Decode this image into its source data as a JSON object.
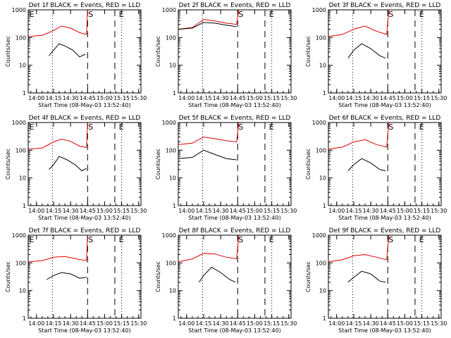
{
  "figure": {
    "ylabel": "Counts/sec",
    "xlabel": "Start Time (08-May-03 13:52:40)"
  },
  "colors": {
    "events": "#000000",
    "lld": "#e00000"
  },
  "chart_data": [
    {
      "type": "line",
      "title": "Det 1f BLACK = Events, RED = LLD",
      "xlabel": "Start Time (08-May-03 13:52:40)",
      "ylabel": "Counts/sec",
      "yscale": "log",
      "ylim": [
        1,
        1000
      ],
      "ytick_labels": [
        "1",
        "10",
        "100",
        "1000"
      ],
      "xtick_labels": [
        "14:00",
        "14:15",
        "14:30",
        "14:45",
        "15:00",
        "15:15",
        "15:30"
      ],
      "markers": [
        {
          "label": "E",
          "at": "13:53"
        },
        {
          "label": "S",
          "at": "14:45"
        },
        {
          "label": "E",
          "at": "15:12"
        }
      ],
      "dotted_lines": [
        "14:14",
        "15:15"
      ],
      "dashed_lines": [
        "14:45",
        "15:09"
      ],
      "series": [
        {
          "name": "LLD",
          "color": "#e00000",
          "points": [
            [
              "13:53",
              110
            ],
            [
              "14:05",
              120
            ],
            [
              "14:15",
              180
            ],
            [
              "14:22",
              260
            ],
            [
              "14:30",
              220
            ],
            [
              "14:38",
              150
            ],
            [
              "14:44",
              130
            ],
            [
              "14:45",
              1000
            ]
          ]
        },
        {
          "name": "Events",
          "color": "#000000",
          "points": [
            [
              "14:11",
              22
            ],
            [
              "14:15",
              35
            ],
            [
              "14:20",
              60
            ],
            [
              "14:25",
              50
            ],
            [
              "14:32",
              35
            ],
            [
              "14:38",
              20
            ],
            [
              "14:43",
              25
            ]
          ]
        }
      ]
    },
    {
      "type": "line",
      "title": "Det 2f BLACK = Events, RED = LLD",
      "xlabel": "Start Time (08-May-03 13:52:40)",
      "ylabel": "Counts/sec",
      "yscale": "log",
      "ylim": [
        1,
        1000
      ],
      "ytick_labels": [
        "1",
        "10",
        "100",
        "1000"
      ],
      "xtick_labels": [
        "14:00",
        "14:15",
        "14:30",
        "14:45",
        "15:00",
        "15:15",
        "15:30"
      ],
      "markers": [
        {
          "label": "S",
          "at": "14:45"
        },
        {
          "label": "E",
          "at": "15:12"
        }
      ],
      "dotted_lines": [
        "14:14",
        "15:15"
      ],
      "dashed_lines": [
        "14:45",
        "15:09"
      ],
      "series": [
        {
          "name": "LLD",
          "color": "#e00000",
          "points": [
            [
              "13:53",
              200
            ],
            [
              "14:05",
              230
            ],
            [
              "14:15",
              450
            ],
            [
              "14:25",
              400
            ],
            [
              "14:35",
              330
            ],
            [
              "14:44",
              300
            ],
            [
              "14:46",
              1000
            ]
          ]
        },
        {
          "name": "Events",
          "color": "#000000",
          "points": [
            [
              "13:53",
              200
            ],
            [
              "14:05",
              220
            ],
            [
              "14:15",
              350
            ],
            [
              "14:25",
              330
            ],
            [
              "14:35",
              280
            ],
            [
              "14:44",
              250
            ]
          ]
        }
      ]
    },
    {
      "type": "line",
      "title": "Det 3f BLACK = Events, RED = LLD",
      "xlabel": "Start Time (08-May-03 13:52:40)",
      "ylabel": "Counts/sec",
      "yscale": "log",
      "ylim": [
        1,
        1000
      ],
      "ytick_labels": [
        "1",
        "10",
        "100",
        "1000"
      ],
      "xtick_labels": [
        "14:00",
        "14:15",
        "14:30",
        "14:45",
        "15:00",
        "15:15",
        "15:30"
      ],
      "markers": [
        {
          "label": "S",
          "at": "14:45"
        },
        {
          "label": "E",
          "at": "15:12"
        }
      ],
      "dotted_lines": [
        "14:14",
        "15:15"
      ],
      "dashed_lines": [
        "14:45",
        "15:09"
      ],
      "series": [
        {
          "name": "LLD",
          "color": "#e00000",
          "points": [
            [
              "13:53",
              110
            ],
            [
              "14:05",
              130
            ],
            [
              "14:15",
              200
            ],
            [
              "14:25",
              260
            ],
            [
              "14:35",
              170
            ],
            [
              "14:44",
              130
            ],
            [
              "14:46",
              1000
            ]
          ]
        },
        {
          "name": "Events",
          "color": "#000000",
          "points": [
            [
              "14:10",
              18
            ],
            [
              "14:15",
              35
            ],
            [
              "14:22",
              60
            ],
            [
              "14:30",
              40
            ],
            [
              "14:38",
              22
            ],
            [
              "14:43",
              18
            ]
          ]
        }
      ]
    },
    {
      "type": "line",
      "title": "Det 4f BLACK = Events, RED = LLD",
      "xlabel": "Start Time (08-May-03 13:52:40)",
      "ylabel": "Counts/sec",
      "yscale": "log",
      "ylim": [
        1,
        1000
      ],
      "ytick_labels": [
        "1",
        "10",
        "100",
        "1000"
      ],
      "xtick_labels": [
        "14:00",
        "14:15",
        "14:30",
        "14:45",
        "15:00",
        "15:15",
        "15:30"
      ],
      "markers": [
        {
          "label": "E",
          "at": "13:53"
        },
        {
          "label": "S",
          "at": "14:45"
        },
        {
          "label": "E",
          "at": "15:12"
        }
      ],
      "dotted_lines": [
        "14:14",
        "15:15"
      ],
      "dashed_lines": [
        "14:45",
        "15:09"
      ],
      "series": [
        {
          "name": "LLD",
          "color": "#e00000",
          "points": [
            [
              "13:53",
              110
            ],
            [
              "14:05",
              120
            ],
            [
              "14:15",
              200
            ],
            [
              "14:22",
              250
            ],
            [
              "14:30",
              210
            ],
            [
              "14:38",
              140
            ],
            [
              "14:44",
              125
            ],
            [
              "14:45",
              1000
            ]
          ]
        },
        {
          "name": "Events",
          "color": "#000000",
          "points": [
            [
              "14:11",
              20
            ],
            [
              "14:15",
              30
            ],
            [
              "14:20",
              60
            ],
            [
              "14:27",
              45
            ],
            [
              "14:34",
              30
            ],
            [
              "14:40",
              18
            ],
            [
              "14:44",
              22
            ]
          ]
        }
      ]
    },
    {
      "type": "line",
      "title": "Det 5f BLACK = Events, RED = LLD",
      "xlabel": "Start Time (08-May-03 13:52:40)",
      "ylabel": "Counts/sec",
      "yscale": "log",
      "ylim": [
        1,
        1000
      ],
      "ytick_labels": [
        "1",
        "10",
        "100",
        "1000"
      ],
      "xtick_labels": [
        "14:00",
        "14:15",
        "14:30",
        "14:45",
        "15:00",
        "15:15",
        "15:30"
      ],
      "markers": [
        {
          "label": "S",
          "at": "14:45"
        },
        {
          "label": "E",
          "at": "15:12"
        }
      ],
      "dotted_lines": [
        "14:14",
        "15:15"
      ],
      "dashed_lines": [
        "14:45",
        "15:09"
      ],
      "series": [
        {
          "name": "LLD",
          "color": "#e00000",
          "points": [
            [
              "13:53",
              160
            ],
            [
              "14:05",
              180
            ],
            [
              "14:15",
              300
            ],
            [
              "14:25",
              260
            ],
            [
              "14:35",
              220
            ],
            [
              "14:44",
              200
            ],
            [
              "14:46",
              1000
            ]
          ]
        },
        {
          "name": "Events",
          "color": "#000000",
          "points": [
            [
              "13:53",
              50
            ],
            [
              "14:05",
              55
            ],
            [
              "14:15",
              100
            ],
            [
              "14:25",
              70
            ],
            [
              "14:35",
              50
            ],
            [
              "14:44",
              45
            ]
          ]
        }
      ]
    },
    {
      "type": "line",
      "title": "Det 6f BLACK = Events, RED = LLD",
      "xlabel": "Start Time (08-May-03 13:52:40)",
      "ylabel": "Counts/sec",
      "yscale": "log",
      "ylim": [
        1,
        1000
      ],
      "ytick_labels": [
        "1",
        "10",
        "100",
        "1000"
      ],
      "xtick_labels": [
        "14:00",
        "14:15",
        "14:30",
        "14:45",
        "15:00",
        "15:15",
        "15:30"
      ],
      "markers": [
        {
          "label": "S",
          "at": "14:45"
        },
        {
          "label": "E",
          "at": "15:12"
        }
      ],
      "dotted_lines": [
        "14:14",
        "15:15"
      ],
      "dashed_lines": [
        "14:45",
        "15:09"
      ],
      "series": [
        {
          "name": "LLD",
          "color": "#e00000",
          "points": [
            [
              "13:53",
              110
            ],
            [
              "14:05",
              130
            ],
            [
              "14:15",
              200
            ],
            [
              "14:25",
              240
            ],
            [
              "14:35",
              160
            ],
            [
              "14:44",
              130
            ],
            [
              "14:46",
              1000
            ]
          ]
        },
        {
          "name": "Events",
          "color": "#000000",
          "points": [
            [
              "14:10",
              18
            ],
            [
              "14:15",
              30
            ],
            [
              "14:22",
              50
            ],
            [
              "14:30",
              35
            ],
            [
              "14:38",
              20
            ],
            [
              "14:43",
              18
            ]
          ]
        }
      ]
    },
    {
      "type": "line",
      "title": "Det 7f BLACK = Events, RED = LLD",
      "xlabel": "Start Time (08-May-03 13:52:40)",
      "ylabel": "Counts/sec",
      "yscale": "log",
      "ylim": [
        1,
        1000
      ],
      "ytick_labels": [
        "1",
        "10",
        "100",
        "1000"
      ],
      "xtick_labels": [
        "14:00",
        "14:15",
        "14:30",
        "14:45",
        "15:00",
        "15:15",
        "15:30"
      ],
      "markers": [
        {
          "label": "E",
          "at": "13:53"
        },
        {
          "label": "S",
          "at": "14:45"
        },
        {
          "label": "E",
          "at": "15:12"
        }
      ],
      "dotted_lines": [
        "14:14",
        "15:15"
      ],
      "dashed_lines": [
        "14:45",
        "15:09"
      ],
      "series": [
        {
          "name": "LLD",
          "color": "#e00000",
          "points": [
            [
              "13:53",
              110
            ],
            [
              "14:05",
              120
            ],
            [
              "14:15",
              160
            ],
            [
              "14:25",
              170
            ],
            [
              "14:35",
              140
            ],
            [
              "14:44",
              120
            ],
            [
              "14:45",
              1000
            ]
          ]
        },
        {
          "name": "Events",
          "color": "#000000",
          "points": [
            [
              "14:09",
              25
            ],
            [
              "14:15",
              35
            ],
            [
              "14:22",
              45
            ],
            [
              "14:30",
              40
            ],
            [
              "14:38",
              28
            ],
            [
              "14:44",
              30
            ]
          ]
        }
      ]
    },
    {
      "type": "line",
      "title": "Det 8f BLACK = Events, RED = LLD",
      "xlabel": "Start Time (08-May-03 13:52:40)",
      "ylabel": "Counts/sec",
      "yscale": "log",
      "ylim": [
        1,
        1000
      ],
      "ytick_labels": [
        "1",
        "10",
        "100",
        "1000"
      ],
      "xtick_labels": [
        "14:00",
        "14:15",
        "14:30",
        "14:45",
        "15:00",
        "15:15",
        "15:30"
      ],
      "markers": [
        {
          "label": "S",
          "at": "14:45"
        },
        {
          "label": "E",
          "at": "15:12"
        }
      ],
      "dotted_lines": [
        "14:14",
        "15:15"
      ],
      "dashed_lines": [
        "14:45",
        "15:09"
      ],
      "series": [
        {
          "name": "LLD",
          "color": "#e00000",
          "points": [
            [
              "13:53",
              110
            ],
            [
              "14:05",
              140
            ],
            [
              "14:15",
              220
            ],
            [
              "14:25",
              210
            ],
            [
              "14:35",
              160
            ],
            [
              "14:44",
              140
            ],
            [
              "14:46",
              1000
            ]
          ]
        },
        {
          "name": "Events",
          "color": "#000000",
          "points": [
            [
              "14:11",
              20
            ],
            [
              "14:15",
              35
            ],
            [
              "14:22",
              70
            ],
            [
              "14:30",
              45
            ],
            [
              "14:38",
              25
            ],
            [
              "14:43",
              20
            ]
          ]
        }
      ]
    },
    {
      "type": "line",
      "title": "Det 9f BLACK = Events, RED = LLD",
      "xlabel": "Start Time (08-May-03 13:52:40)",
      "ylabel": "Counts/sec",
      "yscale": "log",
      "ylim": [
        1,
        1000
      ],
      "ytick_labels": [
        "1",
        "10",
        "100",
        "1000"
      ],
      "xtick_labels": [
        "14:00",
        "14:15",
        "14:30",
        "14:45",
        "15:00",
        "15:15",
        "15:30"
      ],
      "markers": [
        {
          "label": "S",
          "at": "14:45"
        },
        {
          "label": "E",
          "at": "15:12"
        }
      ],
      "dotted_lines": [
        "14:14",
        "15:15"
      ],
      "dashed_lines": [
        "14:45",
        "15:09"
      ],
      "series": [
        {
          "name": "LLD",
          "color": "#e00000",
          "points": [
            [
              "13:53",
              110
            ],
            [
              "14:05",
              130
            ],
            [
              "14:15",
              180
            ],
            [
              "14:25",
              200
            ],
            [
              "14:35",
              160
            ],
            [
              "14:44",
              130
            ],
            [
              "14:46",
              1000
            ]
          ]
        },
        {
          "name": "Events",
          "color": "#000000",
          "points": [
            [
              "14:10",
              20
            ],
            [
              "14:15",
              30
            ],
            [
              "14:22",
              50
            ],
            [
              "14:30",
              40
            ],
            [
              "14:38",
              22
            ],
            [
              "14:43",
              20
            ]
          ]
        }
      ]
    }
  ]
}
